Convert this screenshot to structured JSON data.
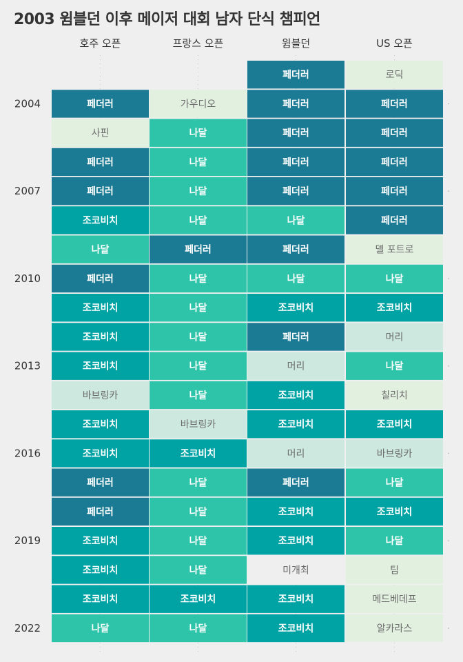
{
  "chart_data": {
    "type": "heatmap",
    "title": "2003 윔블던 이후 메이저 대회 남자 단식 챔피언",
    "columns": [
      "호주 오픈",
      "프랑스 오픈",
      "윔블던",
      "US 오픈"
    ],
    "year_tick_labels": [
      "2004",
      "2007",
      "2010",
      "2013",
      "2016",
      "2019",
      "2022"
    ],
    "rows": [
      {
        "year": 2003,
        "winners": [
          "",
          "",
          "페더러",
          "로딕"
        ]
      },
      {
        "year": 2004,
        "winners": [
          "페더러",
          "가우디오",
          "페더러",
          "페더러"
        ]
      },
      {
        "year": 2005,
        "winners": [
          "사핀",
          "나달",
          "페더러",
          "페더러"
        ]
      },
      {
        "year": 2006,
        "winners": [
          "페더러",
          "나달",
          "페더러",
          "페더러"
        ]
      },
      {
        "year": 2007,
        "winners": [
          "페더러",
          "나달",
          "페더러",
          "페더러"
        ]
      },
      {
        "year": 2008,
        "winners": [
          "조코비치",
          "나달",
          "나달",
          "페더러"
        ]
      },
      {
        "year": 2009,
        "winners": [
          "나달",
          "페더러",
          "페더러",
          "델 포트로"
        ]
      },
      {
        "year": 2010,
        "winners": [
          "페더러",
          "나달",
          "나달",
          "나달"
        ]
      },
      {
        "year": 2011,
        "winners": [
          "조코비치",
          "나달",
          "조코비치",
          "조코비치"
        ]
      },
      {
        "year": 2012,
        "winners": [
          "조코비치",
          "나달",
          "페더러",
          "머리"
        ]
      },
      {
        "year": 2013,
        "winners": [
          "조코비치",
          "나달",
          "머리",
          "나달"
        ]
      },
      {
        "year": 2014,
        "winners": [
          "바브링카",
          "나달",
          "조코비치",
          "칠리치"
        ]
      },
      {
        "year": 2015,
        "winners": [
          "조코비치",
          "바브링카",
          "조코비치",
          "조코비치"
        ]
      },
      {
        "year": 2016,
        "winners": [
          "조코비치",
          "조코비치",
          "머리",
          "바브링카"
        ]
      },
      {
        "year": 2017,
        "winners": [
          "페더러",
          "나달",
          "페더러",
          "나달"
        ]
      },
      {
        "year": 2018,
        "winners": [
          "페더러",
          "나달",
          "조코비치",
          "조코비치"
        ]
      },
      {
        "year": 2019,
        "winners": [
          "조코비치",
          "나달",
          "조코비치",
          "나달"
        ]
      },
      {
        "year": 2020,
        "winners": [
          "조코비치",
          "나달",
          "미개최",
          "팀"
        ]
      },
      {
        "year": 2021,
        "winners": [
          "조코비치",
          "조코비치",
          "조코비치",
          "메드베데프"
        ]
      },
      {
        "year": 2022,
        "winners": [
          "나달",
          "나달",
          "조코비치",
          "알카라스"
        ]
      }
    ],
    "colors": {
      "페더러": "#1b7a94",
      "나달": "#2ec4aa",
      "조코비치": "#00a3a4",
      "머리": "#cde9df",
      "바브링카": "#cde9df",
      "other": "#e2f0df",
      "미개최": "#efefef",
      "background": "#efefef",
      "dark_text": "#ffffff",
      "light_text": "#6b6b6b"
    },
    "grid": false,
    "legend": "none"
  }
}
